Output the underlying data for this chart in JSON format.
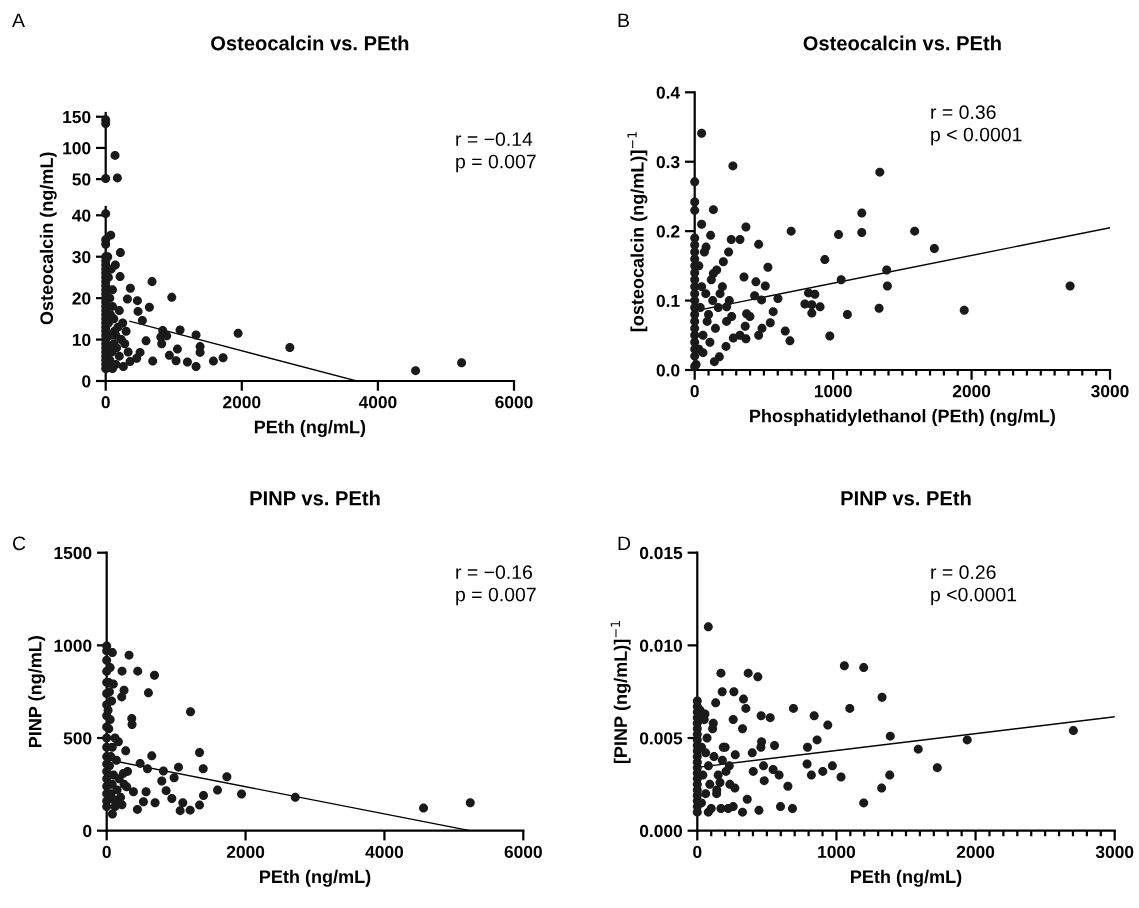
{
  "chart_data": [
    {
      "type": "scatter",
      "title": "Osteocalcin vs. PEth",
      "annotations": [
        "A",
        "r = −0.14\np = 0.007"
      ],
      "xlim": [
        0,
        6000
      ],
      "ylim": [
        47,
        156
      ],
      "yticks": [
        50,
        100,
        150
      ],
      "tick_labels": "y",
      "series": [
        {
          "marker": "circle",
          "color": "#1a1a1a",
          "x": [
            0,
            0,
            137,
            172,
            0
          ],
          "values": [
            145,
            139,
            88,
            52,
            51
          ]
        }
      ]
    },
    {
      "type": "scatter",
      "xlabel": "PEth (ng/mL)",
      "ylabel": "Osteocalcin (ng/mL)",
      "xlim": [
        0,
        6000
      ],
      "ylim": [
        0,
        42
      ],
      "xticks": [
        0,
        2000,
        4000,
        6000
      ],
      "yticks": [
        0,
        10,
        20,
        30,
        40
      ],
      "series": [
        {
          "marker": "circle",
          "color": "#1a1a1a",
          "x": [
            0,
            74,
            0,
            216,
            142,
            211,
            681,
            363,
            971,
            319,
            466,
            642,
            475,
            539,
            838,
            1093,
            1328,
            1946,
            2706,
            4554,
            5230,
            1387,
            1387,
            1054,
            936,
            1034,
            1201,
            1328,
            1583,
            1725,
            691,
            593,
            809,
            897,
            823,
            505,
            260,
            358,
            456,
            0,
            0,
            0,
            0,
            0,
            0,
            0,
            0,
            0,
            0,
            0,
            0,
            0,
            0,
            0,
            0,
            0,
            0,
            0,
            0,
            0,
            0,
            0,
            0,
            0,
            0,
            0,
            0,
            0,
            30,
            60,
            90,
            120,
            150,
            180,
            40,
            70,
            100,
            130,
            160,
            200,
            230,
            250,
            60,
            100,
            40,
            80,
            120,
            200,
            30,
            150,
            280,
            300,
            330,
            100,
            70,
            50
          ],
          "values": [
            40.4,
            35.2,
            34.1,
            31,
            28,
            25.2,
            24,
            22.4,
            20.2,
            19.8,
            19.4,
            17.8,
            16.8,
            14.6,
            12.2,
            12.3,
            11.1,
            11.5,
            8.1,
            2.5,
            4.4,
            8.3,
            6.9,
            7.7,
            6.2,
            4.9,
            4.6,
            3.5,
            4.8,
            5.6,
            4.8,
            9.7,
            10.6,
            10.9,
            9,
            6.9,
            3.5,
            4.7,
            5.5,
            3,
            4,
            5,
            6,
            7,
            8,
            9,
            10,
            11,
            12,
            13,
            14,
            15,
            16,
            17,
            18,
            19,
            20,
            21,
            22,
            23,
            24,
            25,
            26,
            27,
            28,
            29,
            30,
            33,
            3.2,
            5,
            7,
            9,
            11,
            13,
            14,
            16,
            18,
            12,
            8,
            6,
            10,
            14,
            20,
            22,
            25,
            27,
            15,
            17,
            30,
            4,
            9,
            12,
            7,
            3,
            11,
            8
          ]
        },
        {
          "type": "line",
          "color": "#000000",
          "x": [
            358,
            3690
          ],
          "values": [
            14.4,
            0
          ]
        }
      ]
    },
    {
      "type": "scatter",
      "title": "Osteocalcin vs. PEth",
      "annotations": [
        "B",
        "r = 0.36\np < 0.0001"
      ],
      "xlabel": "Phosphatidylethanol (PEth) (ng/mL)",
      "ylabel": "[osteocalcin (ng/mL)]$^{−1}$",
      "xlim": [
        0,
        3000
      ],
      "ylim": [
        0,
        0.4
      ],
      "yticks": [
        {
          "value": 0,
          "label": "0.0"
        },
        0.1,
        0.2,
        0.3,
        0.4
      ],
      "xticks": [
        0,
        {
          "value": 100,
          "label": null
        },
        {
          "value": 200,
          "label": null
        },
        {
          "value": 300,
          "label": null
        },
        {
          "value": 400,
          "label": null
        },
        {
          "value": 500,
          "label": null
        },
        {
          "value": 600,
          "label": null
        },
        {
          "value": 700,
          "label": null
        },
        {
          "value": 800,
          "label": null
        },
        {
          "value": 900,
          "label": null
        },
        1000,
        {
          "value": 1100,
          "label": null
        },
        {
          "value": 1200,
          "label": null
        },
        {
          "value": 1300,
          "label": null
        },
        {
          "value": 1400,
          "label": null
        },
        {
          "value": 1500,
          "label": null
        },
        {
          "value": 1600,
          "label": null
        },
        {
          "value": 1700,
          "label": null
        },
        {
          "value": 1800,
          "label": null
        },
        {
          "value": 1900,
          "label": null
        },
        2000,
        {
          "value": 2100,
          "label": null
        },
        {
          "value": 2200,
          "label": null
        },
        {
          "value": 2300,
          "label": null
        },
        {
          "value": 2400,
          "label": null
        },
        {
          "value": 2500,
          "label": null
        },
        {
          "value": 2600,
          "label": null
        },
        {
          "value": 2700,
          "label": null
        },
        {
          "value": 2800,
          "label": null
        },
        {
          "value": 2900,
          "label": null
        },
        3000
      ],
      "series": [
        {
          "marker": "circle",
          "color": "#1a1a1a",
          "x": [
            50,
            276,
            1337,
            0,
            0,
            135,
            0,
            1207,
            50,
            370,
            697,
            1589,
            1039,
            1207,
            115,
            264,
            327,
            462,
            1731,
            82,
            245,
            940,
            529,
            1387,
            1058,
            356,
            442,
            510,
            1392,
            2712,
            601,
            433,
            822,
            868,
            796,
            846,
            906,
            1332,
            1947,
            846,
            1103,
            567,
            483,
            546,
            486,
            654,
            462,
            976,
            688,
            327,
            370,
            365,
            178,
            142,
            10,
            226,
            279,
            375,
            399,
            267,
            231,
            183,
            135,
            207,
            159,
            0,
            0,
            0,
            0,
            0,
            0,
            0,
            0,
            0,
            0,
            0,
            0,
            0,
            0,
            0,
            0,
            0,
            0,
            0,
            30,
            60,
            90,
            40,
            80,
            120,
            30,
            70,
            50,
            100,
            150,
            130,
            200,
            230,
            60,
            110,
            170,
            250
          ],
          "values": [
            0.341,
            0.294,
            0.285,
            0.271,
            0.242,
            0.231,
            0.23,
            0.226,
            0.21,
            0.206,
            0.2,
            0.2,
            0.195,
            0.198,
            0.194,
            0.188,
            0.188,
            0.181,
            0.175,
            0.177,
            0.17,
            0.159,
            0.148,
            0.144,
            0.13,
            0.134,
            0.127,
            0.121,
            0.121,
            0.121,
            0.103,
            0.107,
            0.111,
            0.109,
            0.095,
            0.094,
            0.091,
            0.089,
            0.086,
            0.082,
            0.08,
            0.084,
            0.101,
            0.068,
            0.06,
            0.056,
            0.05,
            0.049,
            0.042,
            0.05,
            0.045,
            0.063,
            0.019,
            0.012,
            0.008,
            0.034,
            0.046,
            0.081,
            0.077,
            0.077,
            0.091,
            0.11,
            0.139,
            0.156,
            0.144,
            0.02,
            0.03,
            0.04,
            0.05,
            0.06,
            0.07,
            0.08,
            0.09,
            0.1,
            0.11,
            0.12,
            0.13,
            0.14,
            0.15,
            0.16,
            0.17,
            0.18,
            0.19,
            0.005,
            0.03,
            0.05,
            0.07,
            0.09,
            0.11,
            0.13,
            0.15,
            0.17,
            0.12,
            0.08,
            0.06,
            0.1,
            0.12,
            0.07,
            0.025,
            0.04,
            0.09,
            0.1
          ]
        },
        {
          "type": "line",
          "color": "#000000",
          "x": [
            0,
            3000
          ],
          "values": [
            0.085,
            0.205
          ]
        }
      ]
    },
    {
      "type": "scatter",
      "title": "PINP vs. PEth",
      "annotations": [
        "C",
        "r = −0.16\np = 0.007"
      ],
      "xlabel": "PEth (ng/mL)",
      "ylabel": "PINP (ng/mL)",
      "xlim": [
        0,
        6000
      ],
      "ylim": [
        0,
        1500
      ],
      "xticks": [
        0,
        2000,
        4000,
        6000
      ],
      "yticks": [
        0,
        500,
        1000,
        1500
      ],
      "series": [
        {
          "marker": "circle",
          "color": "#1a1a1a",
          "x": [
            322,
            82,
            0,
            221,
            447,
            688,
            601,
            216,
            250,
            96,
            361,
            365,
            1207,
            649,
            1337,
            1390,
            1034,
            1731,
            817,
            971,
            793,
            1596,
            1942,
            2716,
            4563,
            5236,
            1394,
            856,
            938,
            697,
            1096,
            1058,
            1202,
            1337,
            529,
            442,
            82,
            587,
            481,
            274,
            168,
            288,
            385,
            567,
            240,
            168,
            0,
            0,
            0,
            0,
            0,
            0,
            0,
            0,
            0,
            0,
            0,
            0,
            0,
            0,
            0,
            0,
            0,
            0,
            60,
            80,
            100,
            40,
            60,
            80,
            120,
            30,
            50,
            70,
            30,
            50,
            150,
            180,
            200,
            250,
            300,
            120,
            20,
            40,
            90,
            140,
            220
          ],
          "values": [
            947,
            961,
            997,
            861,
            861,
            839,
            744,
            722,
            758,
            791,
            606,
            573,
            642,
            404,
            422,
            334,
            343,
            291,
            322,
            286,
            268,
            219,
            198,
            180,
            122,
            151,
            190,
            216,
            174,
            151,
            151,
            108,
            111,
            138,
            156,
            115,
            90,
            334,
            363,
            431,
            480,
            237,
            210,
            210,
            309,
            165,
            130,
            160,
            200,
            240,
            280,
            320,
            360,
            400,
            450,
            500,
            560,
            620,
            680,
            740,
            800,
            860,
            920,
            970,
            200,
            250,
            300,
            350,
            400,
            450,
            500,
            550,
            600,
            700,
            800,
            880,
            220,
            280,
            180,
            250,
            320,
            130,
            650,
            750,
            170,
            380,
            140
          ]
        },
        {
          "type": "line",
          "color": "#000000",
          "x": [
            0,
            5240
          ],
          "values": [
            384,
            0
          ]
        }
      ]
    },
    {
      "type": "scatter",
      "title": "PINP vs. PEth",
      "annotations": [
        "D",
        "r = 0.26\np <0.0001"
      ],
      "xlabel": "PEth (ng/mL)",
      "ylabel": "[PINP (ng/mL)]$^{−1}$",
      "xlim": [
        0,
        3000
      ],
      "ylim": [
        0,
        0.015
      ],
      "yticks": [
        {
          "value": 0,
          "label": "0.000"
        },
        {
          "value": 0.005,
          "label": "0.005"
        },
        {
          "value": 0.01,
          "label": "0.010"
        },
        {
          "value": 0.015,
          "label": "0.015"
        }
      ],
      "xticks": [
        0,
        {
          "value": 100,
          "label": null
        },
        {
          "value": 200,
          "label": null
        },
        {
          "value": 300,
          "label": null
        },
        {
          "value": 400,
          "label": null
        },
        {
          "value": 500,
          "label": null
        },
        {
          "value": 600,
          "label": null
        },
        {
          "value": 700,
          "label": null
        },
        {
          "value": 800,
          "label": null
        },
        {
          "value": 900,
          "label": null
        },
        1000,
        {
          "value": 1100,
          "label": null
        },
        {
          "value": 1200,
          "label": null
        },
        {
          "value": 1300,
          "label": null
        },
        {
          "value": 1400,
          "label": null
        },
        {
          "value": 1500,
          "label": null
        },
        {
          "value": 1600,
          "label": null
        },
        {
          "value": 1700,
          "label": null
        },
        {
          "value": 1800,
          "label": null
        },
        {
          "value": 1900,
          "label": null
        },
        2000,
        {
          "value": 2100,
          "label": null
        },
        {
          "value": 2200,
          "label": null
        },
        {
          "value": 2300,
          "label": null
        },
        {
          "value": 2400,
          "label": null
        },
        {
          "value": 2500,
          "label": null
        },
        {
          "value": 2600,
          "label": null
        },
        {
          "value": 2700,
          "label": null
        },
        {
          "value": 2800,
          "label": null
        },
        {
          "value": 2900,
          "label": null
        },
        3000
      ],
      "series": [
        {
          "marker": "circle",
          "color": "#1a1a1a",
          "x": [
            79,
            1057,
            1196,
            170,
            366,
            435,
            179,
            263,
            1328,
            332,
            132,
            691,
            1096,
            349,
            840,
            459,
            524,
            938,
            2703,
            325,
            1387,
            861,
            1940,
            1588,
            792,
            555,
            462,
            457,
            395,
            273,
            789,
            971,
            1725,
            476,
            545,
            402,
            902,
            820,
            1033,
            1383,
            588,
            481,
            651,
            1325,
            1196,
            598,
            684,
            443,
            325,
            222,
            258,
            359,
            170,
            79,
            139,
            234,
            163,
            270,
            206,
            187,
            258,
            115,
            55,
            0,
            0,
            0,
            0,
            0,
            0,
            0,
            0,
            0,
            0,
            0,
            0,
            0,
            0,
            0,
            0,
            0,
            0,
            0,
            0,
            0,
            30,
            60,
            90,
            40,
            80,
            120,
            30,
            70,
            110,
            50,
            20,
            150,
            180,
            200,
            100,
            140,
            60,
            230
          ],
          "values": [
            0.011,
            0.0089,
            0.0088,
            0.0085,
            0.0085,
            0.0083,
            0.0075,
            0.0075,
            0.0072,
            0.0071,
            0.0069,
            0.0066,
            0.0066,
            0.0066,
            0.0062,
            0.0062,
            0.0061,
            0.0057,
            0.0054,
            0.0055,
            0.0051,
            0.0049,
            0.0049,
            0.0044,
            0.0045,
            0.0046,
            0.0048,
            0.0045,
            0.0042,
            0.0041,
            0.0036,
            0.0035,
            0.0034,
            0.0035,
            0.0033,
            0.0032,
            0.0032,
            0.003,
            0.0029,
            0.003,
            0.003,
            0.0027,
            0.0024,
            0.0023,
            0.0015,
            0.0013,
            0.0012,
            0.0011,
            0.001,
            0.0012,
            0.0013,
            0.0017,
            0.0012,
            0.001,
            0.002,
            0.0025,
            0.0026,
            0.0023,
            0.0032,
            0.0045,
            0.006,
            0.0058,
            0.0063,
            0.001,
            0.0013,
            0.0016,
            0.0019,
            0.0022,
            0.0025,
            0.0028,
            0.0031,
            0.0034,
            0.0037,
            0.004,
            0.0043,
            0.0046,
            0.0049,
            0.0052,
            0.0055,
            0.0058,
            0.0061,
            0.0064,
            0.0067,
            0.007,
            0.0015,
            0.002,
            0.0025,
            0.003,
            0.0035,
            0.004,
            0.0045,
            0.005,
            0.0055,
            0.006,
            0.0065,
            0.003,
            0.0038,
            0.0045,
            0.0012,
            0.0022,
            0.0042,
            0.0035
          ]
        },
        {
          "type": "line",
          "color": "#000000",
          "x": [
            0,
            3000
          ],
          "values": [
            0.00342,
            0.00615
          ]
        }
      ]
    }
  ]
}
